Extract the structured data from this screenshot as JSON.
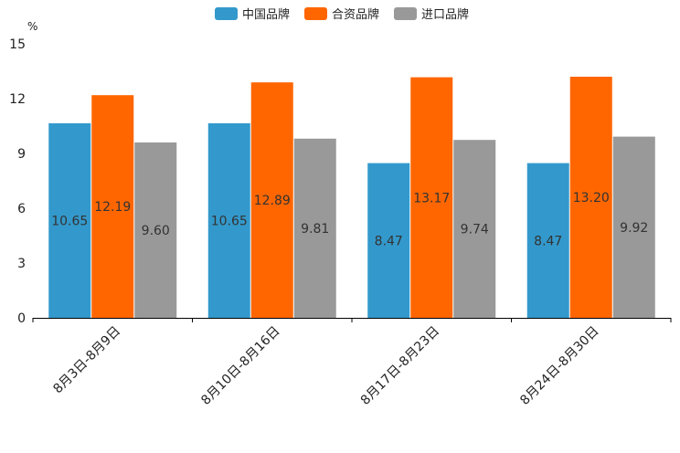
{
  "chart_data": {
    "type": "bar",
    "ylabel": "%",
    "ylim": [
      0,
      15
    ],
    "yticks": [
      0,
      3,
      6,
      9,
      12,
      15
    ],
    "categories": [
      "8月3日-8月9日",
      "8月10日-8月16日",
      "8月17日-8月23日",
      "8月24日-8月30日"
    ],
    "series": [
      {
        "name": "中国品牌",
        "color": "#3399cc",
        "values": [
          10.65,
          10.65,
          8.47,
          8.47
        ]
      },
      {
        "name": "合资品牌",
        "color": "#ff6600",
        "values": [
          12.19,
          12.89,
          13.17,
          13.2
        ]
      },
      {
        "name": "进口品牌",
        "color": "#999999",
        "values": [
          9.6,
          9.81,
          9.74,
          9.92
        ]
      }
    ],
    "legend_position": "top-center",
    "grid": false
  }
}
